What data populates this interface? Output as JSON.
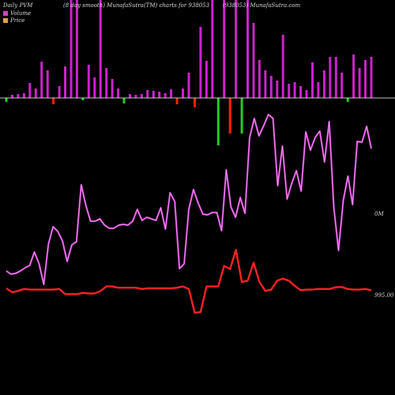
{
  "header": {
    "left": "Daily PVM",
    "middle": "(8 day smooth) MunafaSutra(TM) charts for 938053",
    "right": "(938053) MunafaSutra.com"
  },
  "legend": [
    {
      "label": "Volume",
      "color": "#cc44cc"
    },
    {
      "label": "Price",
      "color": "#e0a040"
    }
  ],
  "axis_labels": {
    "volume": "0M",
    "price": "995.00"
  },
  "colors": {
    "background": "#000000",
    "volume_line": "#cc44cc",
    "price_line": "#ff2222",
    "up_bar": "#cc22cc",
    "neutral_bar": "#ff66ff",
    "down_bar": "#ff2200",
    "negative_bar": "#22cc22",
    "baseline": "#ffffff"
  },
  "chart_data": {
    "type": "line",
    "series": [
      {
        "name": "Volume",
        "values": [
          57,
          53,
          54,
          57,
          61,
          64,
          81,
          66,
          40,
          91,
          113,
          107,
          95,
          69,
          90,
          94,
          166,
          140,
          120,
          120,
          123,
          115,
          111,
          111,
          115,
          116,
          115,
          120,
          135,
          121,
          125,
          123,
          121,
          137,
          110,
          156,
          145,
          60,
          66,
          135,
          160,
          143,
          129,
          128,
          131,
          131,
          108,
          185,
          138,
          125,
          150,
          130,
          226,
          250,
          228,
          241,
          255,
          250,
          165,
          215,
          148,
          168,
          184,
          158,
          233,
          210,
          226,
          234,
          195,
          246,
          137,
          83,
          146,
          177,
          141,
          221,
          220,
          240,
          212
        ]
      },
      {
        "name": "Price",
        "values": [
          1000,
          994,
          996,
          999,
          998,
          998,
          998,
          998,
          998,
          999,
          991,
          991,
          991,
          993,
          992,
          992,
          996,
          1003,
          1003,
          1001,
          1001,
          1001,
          1001,
          999,
          1000,
          1000,
          1000,
          1000,
          1000,
          1001,
          1003,
          999,
          962,
          963,
          1003,
          1003,
          1003,
          1035,
          1030,
          1060,
          1010,
          1012,
          1040,
          1010,
          996,
          998,
          1012,
          1015,
          1012,
          1004,
          997,
          998,
          998,
          999,
          999,
          999,
          1002,
          1002,
          999,
          998,
          998,
          999,
          997
        ]
      }
    ],
    "bars": [
      {
        "direction": "negative",
        "height": 5
      },
      {
        "direction": "up",
        "height": 4
      },
      {
        "direction": "up",
        "height": 5
      },
      {
        "direction": "up",
        "height": 6
      },
      {
        "direction": "up",
        "height": 19
      },
      {
        "direction": "up",
        "height": 12
      },
      {
        "direction": "up",
        "height": 46
      },
      {
        "direction": "up",
        "height": 35
      },
      {
        "direction": "down",
        "height": 8
      },
      {
        "direction": "up",
        "height": 15
      },
      {
        "direction": "up",
        "height": 40
      },
      {
        "direction": "up",
        "height": 125
      },
      {
        "direction": "up",
        "height": 125
      },
      {
        "direction": "negative",
        "height": 3
      },
      {
        "direction": "up",
        "height": 42
      },
      {
        "direction": "up",
        "height": 26
      },
      {
        "direction": "up",
        "height": 125
      },
      {
        "direction": "up",
        "height": 38
      },
      {
        "direction": "up",
        "height": 24
      },
      {
        "direction": "up",
        "height": 12
      },
      {
        "direction": "negative",
        "height": 7
      },
      {
        "direction": "up",
        "height": 5
      },
      {
        "direction": "up",
        "height": 4
      },
      {
        "direction": "up",
        "height": 5
      },
      {
        "direction": "up",
        "height": 10
      },
      {
        "direction": "up",
        "height": 9
      },
      {
        "direction": "up",
        "height": 8
      },
      {
        "direction": "up",
        "height": 6
      },
      {
        "direction": "up",
        "height": 11
      },
      {
        "direction": "down",
        "height": 8
      },
      {
        "direction": "up",
        "height": 12
      },
      {
        "direction": "up",
        "height": 32
      },
      {
        "direction": "down",
        "height": 12
      },
      {
        "direction": "up",
        "height": 90
      },
      {
        "direction": "up",
        "height": 47
      },
      {
        "direction": "up",
        "height": 125
      },
      {
        "direction": "negative",
        "height": 60
      },
      {
        "direction": "up",
        "height": 125
      },
      {
        "direction": "down",
        "height": 45
      },
      {
        "direction": "up",
        "height": 125
      },
      {
        "direction": "negative",
        "height": 45
      },
      {
        "direction": "up",
        "height": 125
      },
      {
        "direction": "up",
        "height": 95
      },
      {
        "direction": "up",
        "height": 48
      },
      {
        "direction": "up",
        "height": 35
      },
      {
        "direction": "up",
        "height": 28
      },
      {
        "direction": "up",
        "height": 22
      },
      {
        "direction": "up",
        "height": 80
      },
      {
        "direction": "up",
        "height": 18
      },
      {
        "direction": "up",
        "height": 20
      },
      {
        "direction": "up",
        "height": 15
      },
      {
        "direction": "up",
        "height": 10
      },
      {
        "direction": "up",
        "height": 45
      },
      {
        "direction": "up",
        "height": 20
      },
      {
        "direction": "up",
        "height": 35
      },
      {
        "direction": "up",
        "height": 52
      },
      {
        "direction": "up",
        "height": 52
      },
      {
        "direction": "up",
        "height": 32
      },
      {
        "direction": "negative",
        "height": 5
      },
      {
        "direction": "up",
        "height": 55
      },
      {
        "direction": "up",
        "height": 38
      },
      {
        "direction": "up",
        "height": 48
      },
      {
        "direction": "up",
        "height": 52
      }
    ]
  }
}
